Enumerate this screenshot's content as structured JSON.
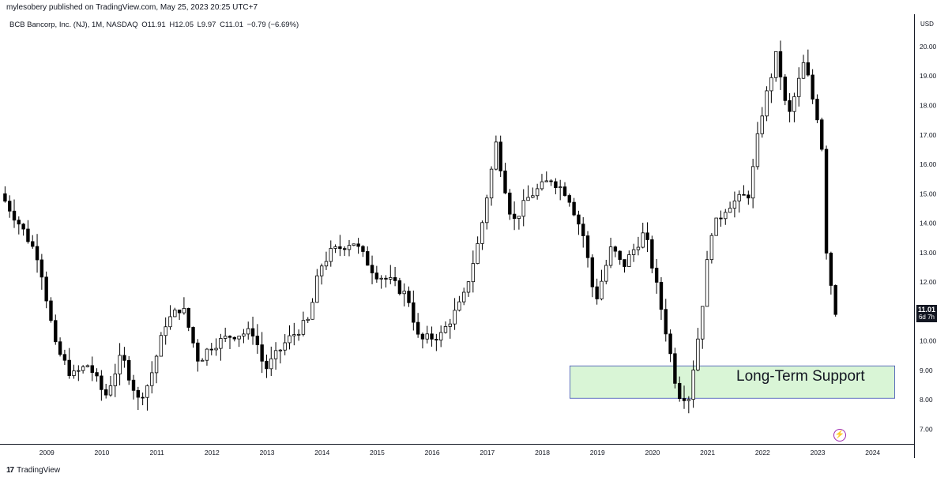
{
  "header": {
    "published_by": "mylesobery published on TradingView.com, May 25, 2023 20:25 UTC+7"
  },
  "legend": {
    "symbol": "BCB Bancorp, Inc. (NJ), 1M, NASDAQ",
    "open": "O11.91",
    "high": "H12.05",
    "low": "L9.97",
    "close": "C11.01",
    "change": "−0.79 (−6.69%)"
  },
  "price_scale": {
    "currency": "USD"
  },
  "last_price": {
    "value": "11.01",
    "countdown": "6d 7h"
  },
  "annotation": {
    "text": "Long-Term Support",
    "fill": "#d9f5d6",
    "border": "#3f51b5",
    "range": [
      8.05,
      9.15
    ],
    "x_range": [
      "2018.5",
      "2024.4"
    ]
  },
  "footer": {
    "brand": "TradingView"
  },
  "colors": {
    "up": "#ffffff",
    "down": "#000000",
    "outline": "#000000",
    "axis": "#131722"
  },
  "chart_data": {
    "type": "candlestick",
    "title": "BCB Bancorp, Inc. (NJ), 1M, NASDAQ",
    "xlabel": "",
    "ylabel": "",
    "x_ticks": [
      "2009",
      "2010",
      "2011",
      "2012",
      "2013",
      "2014",
      "2015",
      "2016",
      "2017",
      "2018",
      "2019",
      "2020",
      "2021",
      "2022",
      "2023",
      "2024"
    ],
    "y_ticks": [
      "7.00",
      "8.00",
      "9.00",
      "10.00",
      "11.00",
      "12.00",
      "13.00",
      "14.00",
      "15.00",
      "16.00",
      "17.00",
      "18.00",
      "19.00",
      "20.00"
    ],
    "ylim": [
      6.5,
      21.1
    ],
    "xlim": [
      2008.15,
      2024.75
    ],
    "grid": false,
    "keypoints": [
      [
        "2008.2",
        15.0
      ],
      [
        "2008.6",
        13.8
      ],
      [
        "2008.9",
        12.8
      ],
      [
        "2009.2",
        9.8
      ],
      [
        "2009.5",
        8.8
      ],
      [
        "2009.8",
        9.2
      ],
      [
        "2010.1",
        8.1
      ],
      [
        "2010.4",
        9.5
      ],
      [
        "2010.7",
        8.0
      ],
      [
        "2010.9",
        8.6
      ],
      [
        "2011.2",
        10.6
      ],
      [
        "2011.5",
        11.2
      ],
      [
        "2011.8",
        9.3
      ],
      [
        "2012.0",
        9.8
      ],
      [
        "2012.4",
        10.2
      ],
      [
        "2012.8",
        10.3
      ],
      [
        "2013.0",
        9.0
      ],
      [
        "2013.4",
        10.0
      ],
      [
        "2013.8",
        10.7
      ],
      [
        "2014.0",
        12.5
      ],
      [
        "2014.2",
        13.0
      ],
      [
        "2014.6",
        13.4
      ],
      [
        "2015.0",
        12.3
      ],
      [
        "2015.3",
        12.0
      ],
      [
        "2015.6",
        11.5
      ],
      [
        "2015.8",
        10.0
      ],
      [
        "2016.2",
        10.2
      ],
      [
        "2016.6",
        11.4
      ],
      [
        "2016.9",
        13.5
      ],
      [
        "2017.2",
        16.7
      ],
      [
        "2017.5",
        14.0
      ],
      [
        "2017.8",
        14.9
      ],
      [
        "2018.2",
        15.5
      ],
      [
        "2018.5",
        15.0
      ],
      [
        "2018.8",
        13.5
      ],
      [
        "2019.0",
        11.3
      ],
      [
        "2019.3",
        13.2
      ],
      [
        "2019.5",
        12.5
      ],
      [
        "2019.9",
        13.7
      ],
      [
        "2020.1",
        12.0
      ],
      [
        "2020.3",
        10.2
      ],
      [
        "2020.5",
        8.2
      ],
      [
        "2020.7",
        8.1
      ],
      [
        "2020.9",
        10.5
      ],
      [
        "2021.1",
        13.7
      ],
      [
        "2021.4",
        14.6
      ],
      [
        "2021.8",
        15.0
      ],
      [
        "2022.0",
        17.5
      ],
      [
        "2022.3",
        19.8
      ],
      [
        "2022.5",
        17.5
      ],
      [
        "2022.8",
        19.5
      ],
      [
        "2023.0",
        17.8
      ],
      [
        "2023.1",
        17.3
      ],
      [
        "2023.2",
        13.1
      ],
      [
        "2023.35",
        11.01
      ]
    ]
  }
}
